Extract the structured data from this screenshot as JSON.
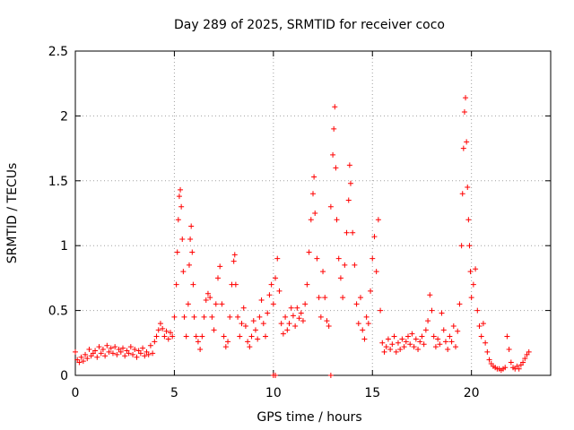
{
  "chart_data": {
    "type": "scatter",
    "title": "Day 289 of 2025, SRMTID for receiver coco",
    "xlabel": "GPS time / hours",
    "ylabel": "SRMTID / TECUs",
    "xlim": [
      0,
      24
    ],
    "ylim": [
      0,
      2.5
    ],
    "x_ticks": [
      0,
      5,
      10,
      15,
      20
    ],
    "x_tick_labels": [
      "0",
      "5",
      "10",
      "15",
      "20"
    ],
    "y_ticks": [
      0,
      0.5,
      1,
      1.5,
      2,
      2.5
    ],
    "y_tick_labels": [
      "0",
      "0.5",
      "1",
      "1.5",
      "2",
      "2.5"
    ],
    "grid": true,
    "marker": "+",
    "color": "#ff0000",
    "series": [
      {
        "name": "SRMTID",
        "points": [
          [
            0.0,
            0.18
          ],
          [
            0.1,
            0.12
          ],
          [
            0.2,
            0.1
          ],
          [
            0.3,
            0.14
          ],
          [
            0.4,
            0.11
          ],
          [
            0.5,
            0.16
          ],
          [
            0.6,
            0.13
          ],
          [
            0.7,
            0.2
          ],
          [
            0.8,
            0.15
          ],
          [
            0.9,
            0.17
          ],
          [
            1.0,
            0.19
          ],
          [
            1.1,
            0.14
          ],
          [
            1.2,
            0.22
          ],
          [
            1.3,
            0.17
          ],
          [
            1.4,
            0.2
          ],
          [
            1.5,
            0.15
          ],
          [
            1.6,
            0.23
          ],
          [
            1.7,
            0.18
          ],
          [
            1.8,
            0.21
          ],
          [
            1.9,
            0.17
          ],
          [
            2.0,
            0.22
          ],
          [
            2.1,
            0.16
          ],
          [
            2.2,
            0.2
          ],
          [
            2.3,
            0.18
          ],
          [
            2.4,
            0.21
          ],
          [
            2.5,
            0.15
          ],
          [
            2.6,
            0.19
          ],
          [
            2.7,
            0.17
          ],
          [
            2.8,
            0.22
          ],
          [
            2.9,
            0.16
          ],
          [
            3.0,
            0.2
          ],
          [
            3.1,
            0.14
          ],
          [
            3.2,
            0.19
          ],
          [
            3.3,
            0.17
          ],
          [
            3.4,
            0.21
          ],
          [
            3.5,
            0.15
          ],
          [
            3.6,
            0.18
          ],
          [
            3.7,
            0.16
          ],
          [
            3.8,
            0.23
          ],
          [
            3.9,
            0.17
          ],
          [
            4.0,
            0.26
          ],
          [
            4.1,
            0.3
          ],
          [
            4.2,
            0.35
          ],
          [
            4.3,
            0.4
          ],
          [
            4.4,
            0.36
          ],
          [
            4.5,
            0.3
          ],
          [
            4.6,
            0.34
          ],
          [
            4.7,
            0.28
          ],
          [
            4.8,
            0.33
          ],
          [
            4.9,
            0.3
          ],
          [
            5.0,
            0.45
          ],
          [
            5.1,
            0.7
          ],
          [
            5.15,
            0.95
          ],
          [
            5.2,
            1.2
          ],
          [
            5.25,
            1.38
          ],
          [
            5.3,
            1.43
          ],
          [
            5.35,
            1.3
          ],
          [
            5.4,
            1.05
          ],
          [
            5.45,
            0.8
          ],
          [
            5.5,
            0.45
          ],
          [
            5.6,
            0.3
          ],
          [
            5.7,
            0.55
          ],
          [
            5.75,
            0.85
          ],
          [
            5.8,
            1.05
          ],
          [
            5.85,
            1.15
          ],
          [
            5.9,
            0.95
          ],
          [
            5.95,
            0.7
          ],
          [
            6.0,
            0.45
          ],
          [
            6.1,
            0.3
          ],
          [
            6.2,
            0.26
          ],
          [
            6.3,
            0.2
          ],
          [
            6.4,
            0.3
          ],
          [
            6.5,
            0.45
          ],
          [
            6.6,
            0.58
          ],
          [
            6.7,
            0.63
          ],
          [
            6.8,
            0.6
          ],
          [
            6.9,
            0.45
          ],
          [
            7.0,
            0.35
          ],
          [
            7.1,
            0.55
          ],
          [
            7.2,
            0.75
          ],
          [
            7.3,
            0.84
          ],
          [
            7.4,
            0.55
          ],
          [
            7.5,
            0.3
          ],
          [
            7.6,
            0.22
          ],
          [
            7.7,
            0.26
          ],
          [
            7.8,
            0.45
          ],
          [
            7.9,
            0.7
          ],
          [
            8.0,
            0.88
          ],
          [
            8.05,
            0.93
          ],
          [
            8.1,
            0.7
          ],
          [
            8.2,
            0.45
          ],
          [
            8.3,
            0.3
          ],
          [
            8.4,
            0.4
          ],
          [
            8.5,
            0.52
          ],
          [
            8.6,
            0.38
          ],
          [
            8.7,
            0.26
          ],
          [
            8.8,
            0.22
          ],
          [
            8.9,
            0.3
          ],
          [
            9.0,
            0.42
          ],
          [
            9.1,
            0.35
          ],
          [
            9.2,
            0.28
          ],
          [
            9.3,
            0.45
          ],
          [
            9.4,
            0.58
          ],
          [
            9.5,
            0.4
          ],
          [
            9.6,
            0.3
          ],
          [
            9.7,
            0.48
          ],
          [
            9.8,
            0.62
          ],
          [
            9.9,
            0.7
          ],
          [
            10.0,
            0.55
          ],
          [
            10.1,
            0.75
          ],
          [
            10.2,
            0.9
          ],
          [
            10.3,
            0.65
          ],
          [
            10.4,
            0.4
          ],
          [
            10.5,
            0.32
          ],
          [
            10.6,
            0.45
          ],
          [
            10.7,
            0.35
          ],
          [
            10.8,
            0.4
          ],
          [
            10.9,
            0.52
          ],
          [
            11.0,
            0.46
          ],
          [
            11.1,
            0.38
          ],
          [
            11.2,
            0.52
          ],
          [
            11.3,
            0.44
          ],
          [
            11.4,
            0.48
          ],
          [
            11.5,
            0.42
          ],
          [
            11.6,
            0.55
          ],
          [
            11.7,
            0.7
          ],
          [
            11.8,
            0.95
          ],
          [
            11.9,
            1.2
          ],
          [
            12.0,
            1.4
          ],
          [
            12.05,
            1.53
          ],
          [
            12.1,
            1.25
          ],
          [
            12.2,
            0.9
          ],
          [
            12.3,
            0.6
          ],
          [
            12.4,
            0.45
          ],
          [
            12.5,
            0.8
          ],
          [
            12.6,
            0.6
          ],
          [
            12.7,
            0.42
          ],
          [
            12.8,
            0.38
          ],
          [
            12.9,
            1.3
          ],
          [
            13.0,
            1.7
          ],
          [
            13.05,
            1.9
          ],
          [
            13.1,
            2.07
          ],
          [
            13.15,
            1.6
          ],
          [
            13.2,
            1.2
          ],
          [
            13.3,
            0.9
          ],
          [
            13.4,
            0.75
          ],
          [
            13.5,
            0.6
          ],
          [
            13.6,
            0.85
          ],
          [
            13.7,
            1.1
          ],
          [
            13.8,
            1.35
          ],
          [
            13.85,
            1.62
          ],
          [
            13.9,
            1.48
          ],
          [
            14.0,
            1.1
          ],
          [
            14.1,
            0.85
          ],
          [
            14.2,
            0.55
          ],
          [
            14.3,
            0.4
          ],
          [
            14.4,
            0.6
          ],
          [
            14.5,
            0.35
          ],
          [
            14.6,
            0.28
          ],
          [
            14.7,
            0.45
          ],
          [
            14.8,
            0.4
          ],
          [
            14.9,
            0.65
          ],
          [
            15.0,
            0.9
          ],
          [
            15.1,
            1.07
          ],
          [
            15.2,
            0.8
          ],
          [
            15.3,
            1.2
          ],
          [
            15.4,
            0.5
          ],
          [
            15.5,
            0.25
          ],
          [
            15.6,
            0.18
          ],
          [
            15.7,
            0.22
          ],
          [
            15.8,
            0.28
          ],
          [
            15.9,
            0.2
          ],
          [
            16.0,
            0.24
          ],
          [
            16.1,
            0.3
          ],
          [
            16.2,
            0.18
          ],
          [
            16.3,
            0.25
          ],
          [
            16.4,
            0.2
          ],
          [
            16.5,
            0.28
          ],
          [
            16.6,
            0.22
          ],
          [
            16.7,
            0.26
          ],
          [
            16.8,
            0.3
          ],
          [
            16.9,
            0.24
          ],
          [
            17.0,
            0.32
          ],
          [
            17.1,
            0.22
          ],
          [
            17.2,
            0.28
          ],
          [
            17.3,
            0.2
          ],
          [
            17.4,
            0.26
          ],
          [
            17.5,
            0.3
          ],
          [
            17.6,
            0.24
          ],
          [
            17.7,
            0.35
          ],
          [
            17.8,
            0.42
          ],
          [
            17.9,
            0.62
          ],
          [
            18.0,
            0.5
          ],
          [
            18.1,
            0.3
          ],
          [
            18.2,
            0.22
          ],
          [
            18.3,
            0.28
          ],
          [
            18.4,
            0.24
          ],
          [
            18.5,
            0.48
          ],
          [
            18.6,
            0.35
          ],
          [
            18.7,
            0.26
          ],
          [
            18.8,
            0.2
          ],
          [
            18.9,
            0.3
          ],
          [
            19.0,
            0.26
          ],
          [
            19.1,
            0.38
          ],
          [
            19.2,
            0.22
          ],
          [
            19.3,
            0.34
          ],
          [
            19.4,
            0.55
          ],
          [
            19.5,
            1.0
          ],
          [
            19.55,
            1.4
          ],
          [
            19.6,
            1.75
          ],
          [
            19.65,
            2.03
          ],
          [
            19.7,
            2.14
          ],
          [
            19.75,
            1.8
          ],
          [
            19.8,
            1.45
          ],
          [
            19.85,
            1.2
          ],
          [
            19.9,
            1.0
          ],
          [
            19.95,
            0.8
          ],
          [
            20.0,
            0.6
          ],
          [
            20.1,
            0.7
          ],
          [
            20.2,
            0.82
          ],
          [
            20.3,
            0.5
          ],
          [
            20.4,
            0.38
          ],
          [
            20.5,
            0.3
          ],
          [
            20.6,
            0.4
          ],
          [
            20.7,
            0.25
          ],
          [
            20.8,
            0.18
          ],
          [
            20.9,
            0.12
          ],
          [
            21.0,
            0.09
          ],
          [
            21.1,
            0.07
          ],
          [
            21.2,
            0.06
          ],
          [
            21.3,
            0.05
          ],
          [
            21.4,
            0.05
          ],
          [
            21.5,
            0.04
          ],
          [
            21.6,
            0.05
          ],
          [
            21.7,
            0.06
          ],
          [
            21.8,
            0.3
          ],
          [
            21.9,
            0.2
          ],
          [
            22.0,
            0.1
          ],
          [
            22.1,
            0.06
          ],
          [
            22.2,
            0.05
          ],
          [
            22.3,
            0.07
          ],
          [
            22.4,
            0.05
          ],
          [
            22.5,
            0.08
          ],
          [
            22.6,
            0.1
          ],
          [
            22.7,
            0.13
          ],
          [
            22.8,
            0.16
          ],
          [
            22.9,
            0.18
          ],
          [
            10.0,
            0.0
          ],
          [
            10.1,
            0.0
          ],
          [
            12.9,
            0.0
          ]
        ]
      }
    ]
  }
}
